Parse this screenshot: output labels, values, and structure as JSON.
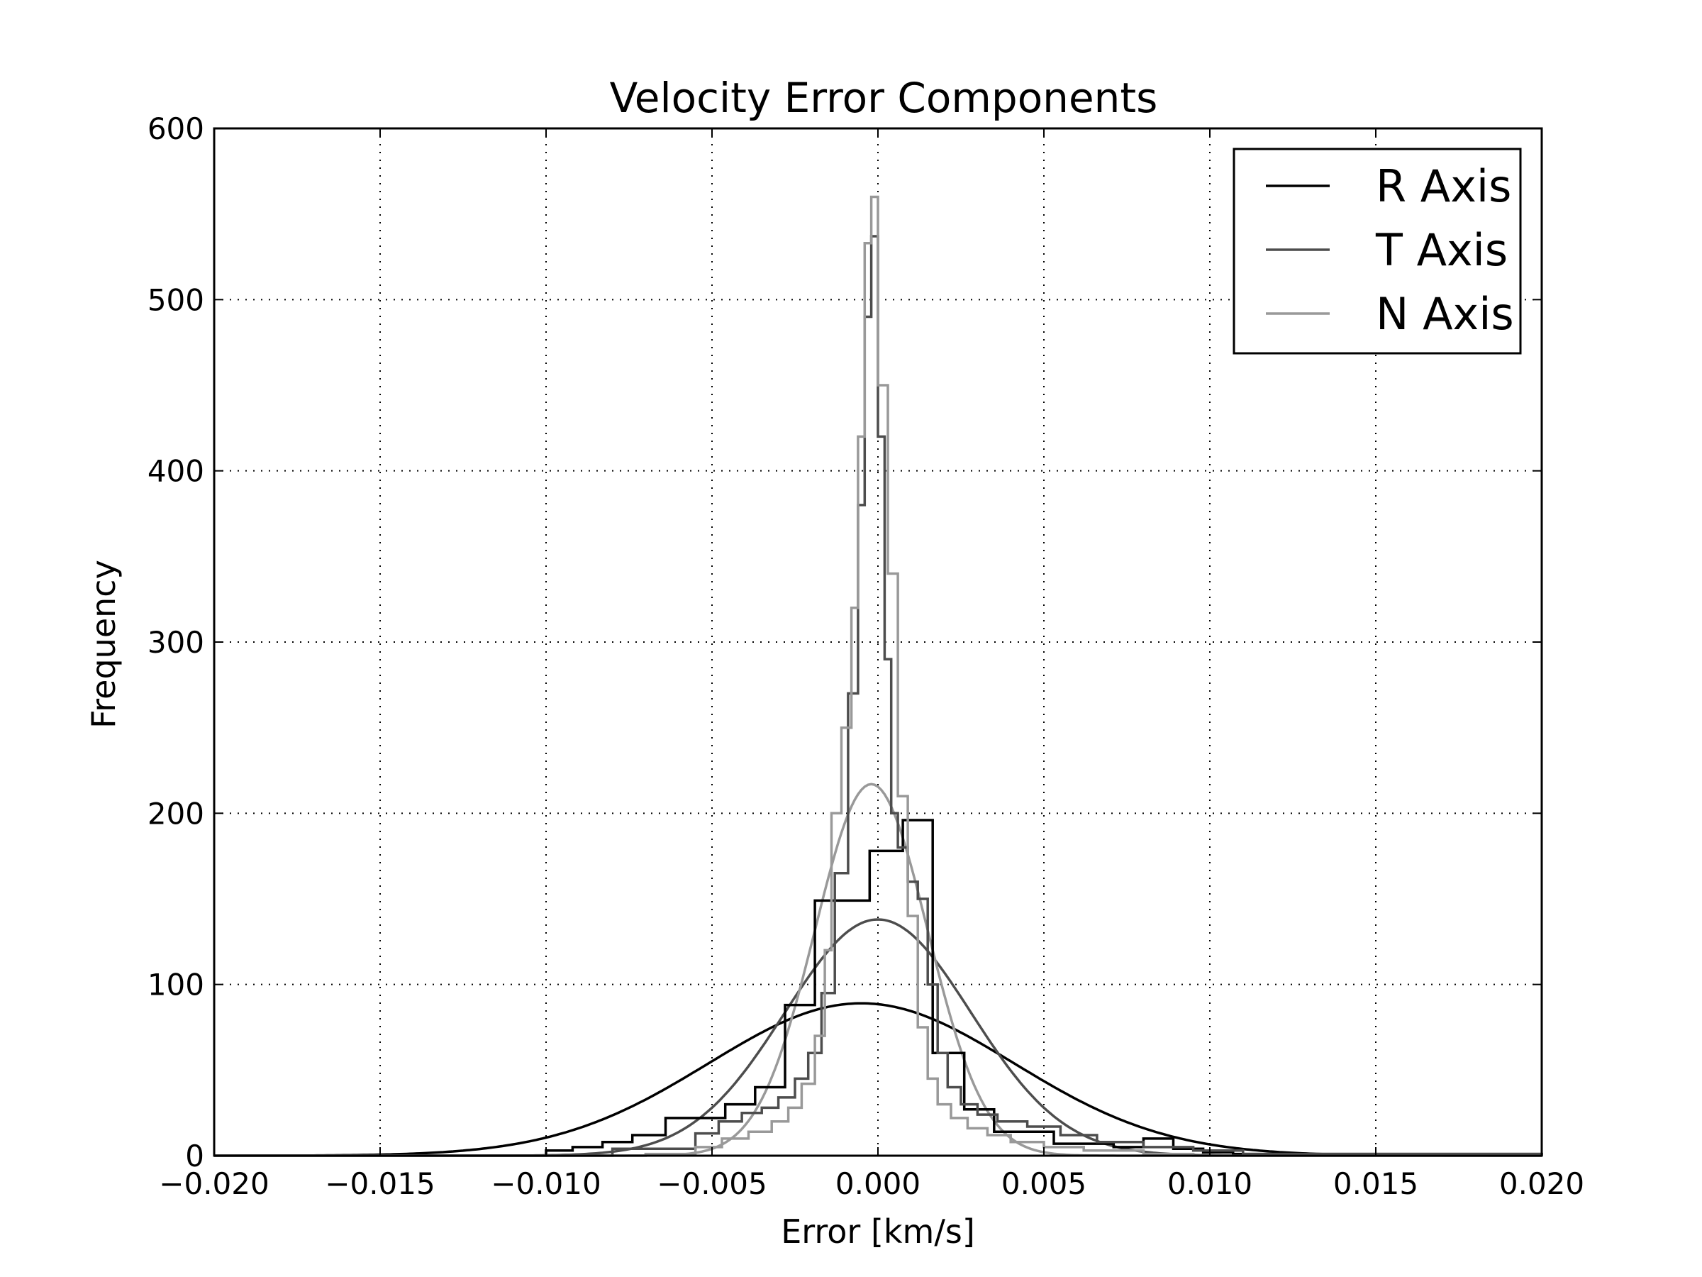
{
  "chart_data": {
    "type": "line",
    "title": "Velocity Error Components",
    "xlabel": "Error [km/s]",
    "ylabel": "Frequency",
    "xlim": [
      -0.02,
      0.02
    ],
    "ylim": [
      0,
      600
    ],
    "grid": true,
    "legend_placement": "top-right",
    "x_ticks": [
      -0.02,
      -0.015,
      -0.01,
      -0.005,
      0.0,
      0.005,
      0.01,
      0.015,
      0.02
    ],
    "x_tick_labels": [
      "−0.020",
      "−0.015",
      "−0.010",
      "−0.005",
      "0.000",
      "0.005",
      "0.010",
      "0.015",
      "0.020"
    ],
    "y_ticks": [
      0,
      100,
      200,
      300,
      400,
      500,
      600
    ],
    "y_tick_labels": [
      "0",
      "100",
      "200",
      "300",
      "400",
      "500",
      "600"
    ],
    "series": [
      {
        "name": "R Axis",
        "color": "#000000",
        "histogram_steps": [
          [
            -0.02,
            0
          ],
          [
            -0.01,
            3
          ],
          [
            -0.0092,
            5
          ],
          [
            -0.0083,
            8
          ],
          [
            -0.0074,
            12
          ],
          [
            -0.0064,
            22
          ],
          [
            -0.0046,
            24
          ],
          [
            -0.0046,
            30
          ],
          [
            -0.0037,
            40
          ],
          [
            -0.0028,
            88
          ],
          [
            -0.0019,
            149
          ],
          [
            -0.00025,
            178
          ],
          [
            0.00075,
            196
          ],
          [
            0.00165,
            60
          ],
          [
            0.0026,
            27
          ],
          [
            0.0035,
            14
          ],
          [
            0.0053,
            7
          ],
          [
            0.0071,
            5
          ],
          [
            0.008,
            10
          ],
          [
            0.0089,
            4
          ],
          [
            0.0098,
            2
          ],
          [
            0.0107,
            1
          ],
          [
            0.02,
            0
          ]
        ],
        "fit_mean": -0.0005,
        "fit_peak": 89,
        "fit_sigma": 0.0046
      },
      {
        "name": "T Axis",
        "color": "#4d4d4d",
        "histogram_steps": [
          [
            -0.02,
            0
          ],
          [
            -0.008,
            4
          ],
          [
            -0.0055,
            13
          ],
          [
            -0.0048,
            20
          ],
          [
            -0.0041,
            25
          ],
          [
            -0.0035,
            28
          ],
          [
            -0.003,
            34
          ],
          [
            -0.0025,
            45
          ],
          [
            -0.0021,
            60
          ],
          [
            -0.0017,
            95
          ],
          [
            -0.0013,
            165
          ],
          [
            -0.0009,
            270
          ],
          [
            -0.0006,
            380
          ],
          [
            -0.0004,
            490
          ],
          [
            -0.0002,
            537
          ],
          [
            0.0,
            420
          ],
          [
            0.0002,
            290
          ],
          [
            0.0004,
            200
          ],
          [
            0.0006,
            180
          ],
          [
            0.0009,
            160
          ],
          [
            0.0012,
            150
          ],
          [
            0.0015,
            100
          ],
          [
            0.0018,
            60
          ],
          [
            0.0021,
            40
          ],
          [
            0.0025,
            30
          ],
          [
            0.003,
            24
          ],
          [
            0.0036,
            20
          ],
          [
            0.0045,
            17
          ],
          [
            0.0055,
            12
          ],
          [
            0.0066,
            8
          ],
          [
            0.008,
            5
          ],
          [
            0.0095,
            3
          ],
          [
            0.011,
            1
          ],
          [
            0.02,
            0
          ]
        ],
        "fit_mean": 0.0,
        "fit_peak": 138,
        "fit_sigma": 0.0028
      },
      {
        "name": "N Axis",
        "color": "#999999",
        "histogram_steps": [
          [
            -0.02,
            0
          ],
          [
            -0.007,
            1
          ],
          [
            -0.0055,
            5
          ],
          [
            -0.0047,
            10
          ],
          [
            -0.0039,
            14
          ],
          [
            -0.0032,
            20
          ],
          [
            -0.0027,
            28
          ],
          [
            -0.0023,
            42
          ],
          [
            -0.0019,
            70
          ],
          [
            -0.0016,
            120
          ],
          [
            -0.0014,
            200
          ],
          [
            -0.0011,
            250
          ],
          [
            -0.0008,
            320
          ],
          [
            -0.0006,
            420
          ],
          [
            -0.0004,
            533
          ],
          [
            -0.0002,
            560
          ],
          [
            0.0,
            450
          ],
          [
            0.0003,
            340
          ],
          [
            0.0006,
            210
          ],
          [
            0.0009,
            140
          ],
          [
            0.0012,
            75
          ],
          [
            0.0015,
            45
          ],
          [
            0.0018,
            30
          ],
          [
            0.0022,
            22
          ],
          [
            0.0027,
            16
          ],
          [
            0.0033,
            12
          ],
          [
            0.004,
            8
          ],
          [
            0.005,
            5
          ],
          [
            0.0062,
            3
          ],
          [
            0.008,
            1
          ],
          [
            0.0095,
            0
          ],
          [
            0.02,
            0
          ]
        ],
        "fit_mean": -0.0002,
        "fit_peak": 217,
        "fit_sigma": 0.0017
      }
    ]
  }
}
